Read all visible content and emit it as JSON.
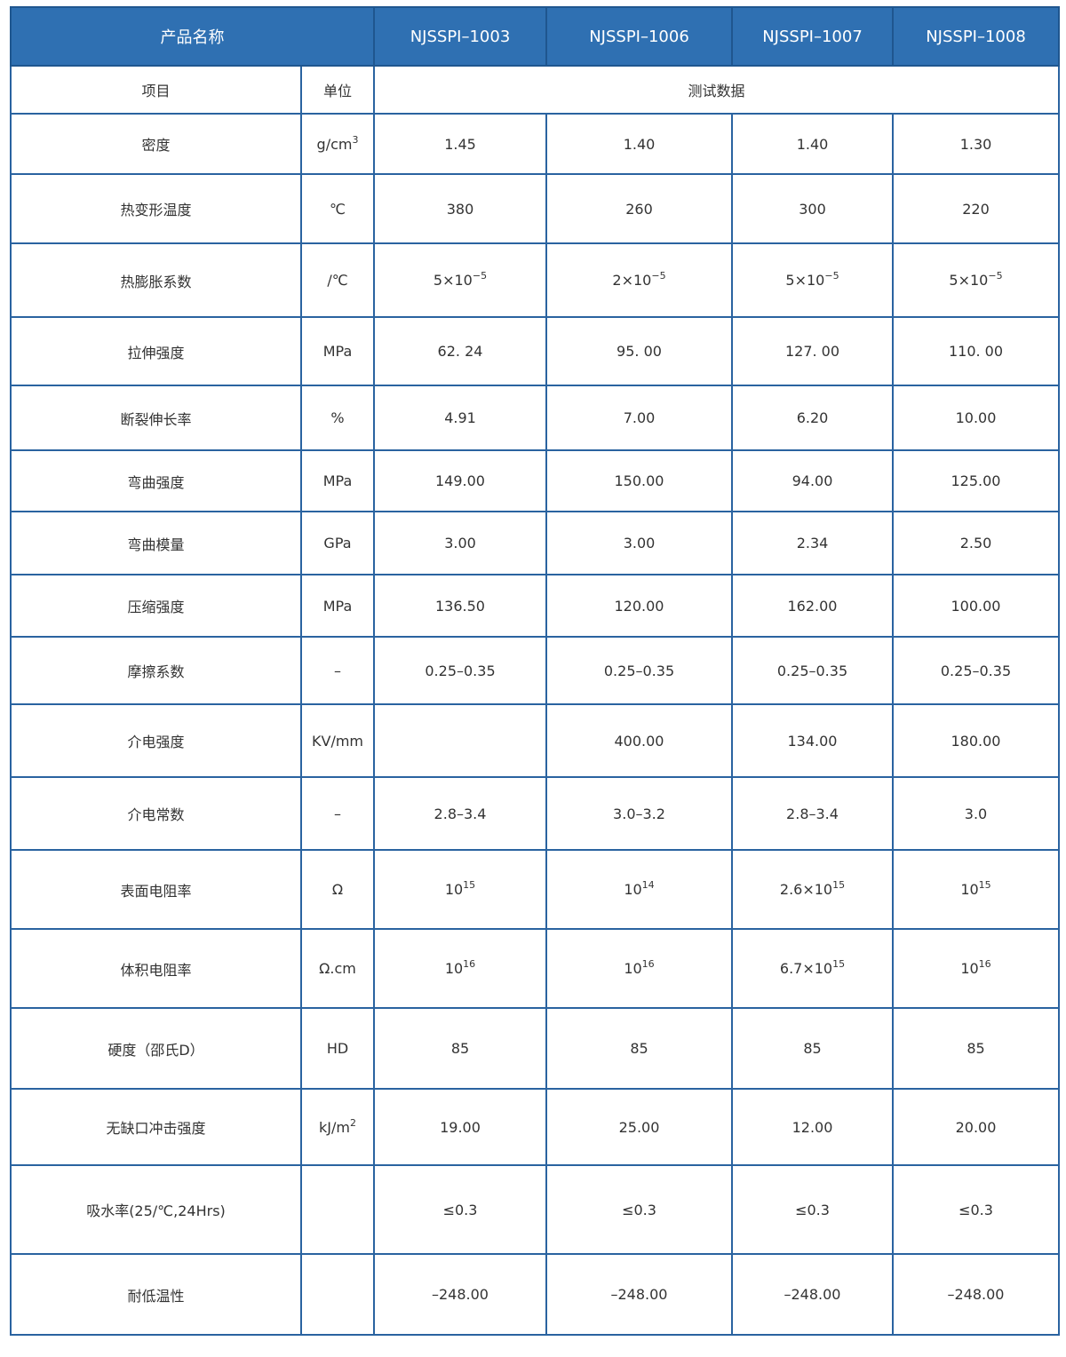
{
  "header": {
    "name_label": "产品名称",
    "products": [
      "NJSSPI–1003",
      "NJSSPI–1006",
      "NJSSPI–1007",
      "NJSSPI–1008"
    ]
  },
  "subheader": {
    "item": "项目",
    "unit": "单位",
    "data": "测试数据"
  },
  "table": {
    "rows": [
      [
        "密度",
        {
          "text": "g/cm",
          "sup": "3"
        },
        "1.45",
        "1.40",
        "1.40",
        "1.30"
      ],
      [
        "热变形温度",
        "℃",
        "380",
        "260",
        "300",
        "220"
      ],
      [
        "热膨胀系数",
        "/℃",
        {
          "text": "5×10",
          "sup": "−5"
        },
        {
          "text": "2×10",
          "sup": "−5"
        },
        {
          "text": "5×10",
          "sup": "−5"
        },
        {
          "text": "5×10",
          "sup": "−5"
        }
      ],
      [
        "拉伸强度",
        "MPa",
        "62. 24",
        "95. 00",
        "127. 00",
        "110. 00"
      ],
      [
        "断裂伸长率",
        "%",
        "4.91",
        "7.00",
        "6.20",
        "10.00"
      ],
      [
        "弯曲强度",
        "MPa",
        "149.00",
        "150.00",
        "94.00",
        "125.00"
      ],
      [
        "弯曲模量",
        "GPa",
        "3.00",
        "3.00",
        "2.34",
        "2.50"
      ],
      [
        "压缩强度",
        "MPa",
        "136.50",
        "120.00",
        "162.00",
        "100.00"
      ],
      [
        "摩擦系数",
        "–",
        "0.25–0.35",
        "0.25–0.35",
        "0.25–0.35",
        "0.25–0.35"
      ],
      [
        "介电强度",
        "KV/mm",
        null,
        "400.00",
        "134.00",
        "180.00"
      ],
      [
        "介电常数",
        "–",
        "2.8–3.4",
        "3.0–3.2",
        "2.8–3.4",
        "3.0"
      ],
      [
        "表面电阻率",
        "Ω",
        {
          "text": "10",
          "sup": "15"
        },
        {
          "text": "10",
          "sup": "14"
        },
        {
          "text": "2.6×10",
          "sup": "15"
        },
        {
          "text": "10",
          "sup": "15"
        }
      ],
      [
        "体积电阻率",
        "Ω.cm",
        {
          "text": "10",
          "sup": "16"
        },
        {
          "text": "10",
          "sup": "16"
        },
        {
          "text": "6.7×10",
          "sup": "15"
        },
        {
          "text": "10",
          "sup": "16"
        }
      ],
      [
        "硬度（邵氏D）",
        "HD",
        "85",
        "85",
        "85",
        "85"
      ],
      [
        "无缺口冲击强度",
        {
          "text": "kJ/m",
          "sup": "2"
        },
        "19.00",
        "25.00",
        "12.00",
        "20.00"
      ],
      [
        "吸水率(25/℃,24Hrs)",
        null,
        "≤0.3",
        "≤0.3",
        "≤0.3",
        "≤0.3"
      ],
      [
        "耐低温性",
        null,
        "–248.00",
        "–248.00",
        "–248.00",
        "–248.00"
      ]
    ]
  }
}
